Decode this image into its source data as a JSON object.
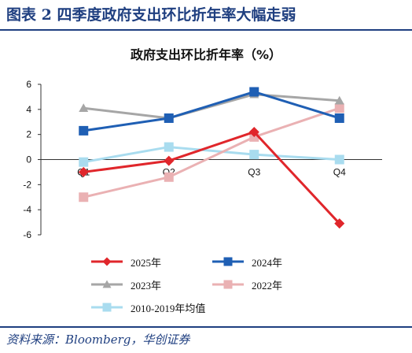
{
  "figure_title": "图表 2    四季度政府支出环比折年率大幅走弱",
  "source_note": "资料来源：Bloomberg，华创证券",
  "chart_data": {
    "type": "line",
    "title": "政府支出环比折年率（%）",
    "xlabel": "",
    "ylabel": "",
    "categories": [
      "Q1",
      "Q2",
      "Q3",
      "Q4"
    ],
    "ylim": [
      -6,
      6
    ],
    "yticks": [
      -6,
      -4,
      -2,
      0,
      2,
      4,
      6
    ],
    "grid": false,
    "legend_position": "bottom",
    "series": [
      {
        "name": "2025年",
        "values": [
          -1.0,
          -0.1,
          2.2,
          -5.1
        ],
        "color": "#e0262b",
        "marker": "diamond"
      },
      {
        "name": "2024年",
        "values": [
          2.3,
          3.3,
          5.4,
          3.3
        ],
        "color": "#1f5fb4",
        "marker": "square"
      },
      {
        "name": "2023年",
        "values": [
          4.1,
          3.3,
          5.2,
          4.7
        ],
        "color": "#a6a6a6",
        "marker": "triangle"
      },
      {
        "name": "2022年",
        "values": [
          -3.0,
          -1.4,
          1.8,
          4.1
        ],
        "color": "#eab1b3",
        "marker": "square"
      },
      {
        "name": "2010-2019年均值",
        "values": [
          -0.2,
          1.0,
          0.4,
          0.0
        ],
        "color": "#a9dcef",
        "marker": "square"
      }
    ]
  }
}
